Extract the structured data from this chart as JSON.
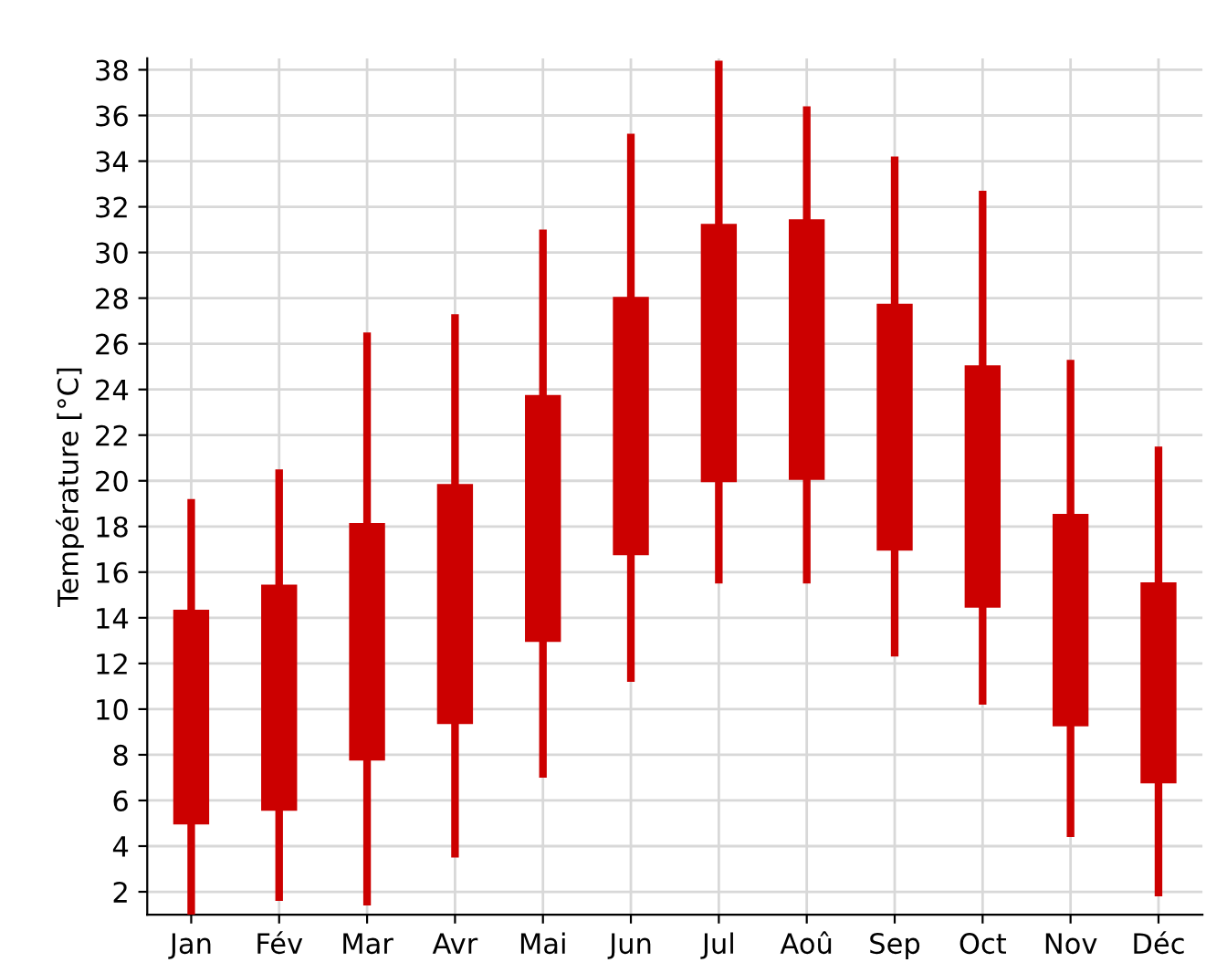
{
  "chart_data": {
    "type": "candlestick",
    "ylabel": "Température [°C]",
    "categories": [
      "Jan",
      "Fév",
      "Mar",
      "Avr",
      "Mai",
      "Jun",
      "Jul",
      "Aoû",
      "Sep",
      "Oct",
      "Nov",
      "Déc"
    ],
    "ohlc": [
      [
        5.0,
        19.2,
        1.0,
        14.3
      ],
      [
        5.6,
        20.5,
        1.6,
        15.4
      ],
      [
        7.8,
        26.5,
        1.4,
        18.1
      ],
      [
        9.4,
        27.3,
        3.5,
        19.8
      ],
      [
        13.0,
        31.0,
        7.0,
        23.7
      ],
      [
        16.8,
        35.2,
        11.2,
        28.0
      ],
      [
        20.0,
        38.4,
        15.5,
        31.2
      ],
      [
        20.1,
        36.4,
        15.5,
        31.4
      ],
      [
        17.0,
        34.2,
        12.3,
        27.7
      ],
      [
        14.5,
        32.7,
        10.2,
        25.0
      ],
      [
        9.3,
        25.3,
        4.4,
        18.5
      ],
      [
        6.8,
        21.5,
        1.8,
        15.5
      ]
    ],
    "color": "#cc0000",
    "ylim": [
      1,
      38.5
    ],
    "yticks": [
      2,
      4,
      6,
      8,
      10,
      12,
      14,
      16,
      18,
      20,
      22,
      24,
      26,
      28,
      30,
      32,
      34,
      36,
      38
    ],
    "grid": true
  }
}
